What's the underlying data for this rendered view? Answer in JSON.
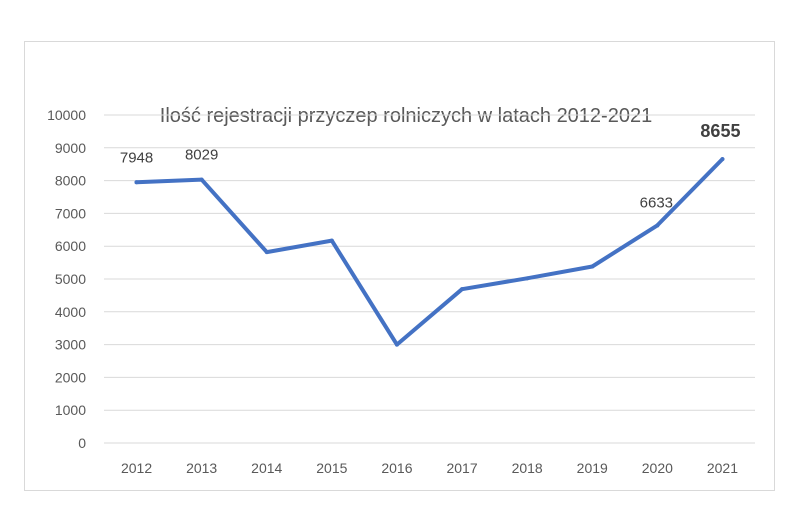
{
  "chart_data": {
    "type": "line",
    "title": "Ilość rejestracji przyczep rolniczych w latach 2012-2021",
    "xlabel": "",
    "ylabel": "",
    "categories": [
      "2012",
      "2013",
      "2014",
      "2015",
      "2016",
      "2017",
      "2018",
      "2019",
      "2020",
      "2021"
    ],
    "series": [
      {
        "values": [
          7948,
          8029,
          5820,
          6170,
          3000,
          4690,
          5020,
          5380,
          6633,
          8655
        ],
        "color": "#4472c4"
      }
    ],
    "ylim": [
      0,
      10000
    ],
    "yticks": [
      "0",
      "1000",
      "2000",
      "3000",
      "4000",
      "5000",
      "6000",
      "7000",
      "8000",
      "9000",
      "10000"
    ],
    "grid": true,
    "legend": "none",
    "data_labels": [
      {
        "index": 0,
        "text": "7948",
        "bold": false
      },
      {
        "index": 1,
        "text": "8029",
        "bold": false
      },
      {
        "index": 8,
        "text": "6633",
        "bold": false
      },
      {
        "index": 9,
        "text": "8655",
        "bold": true
      }
    ]
  }
}
